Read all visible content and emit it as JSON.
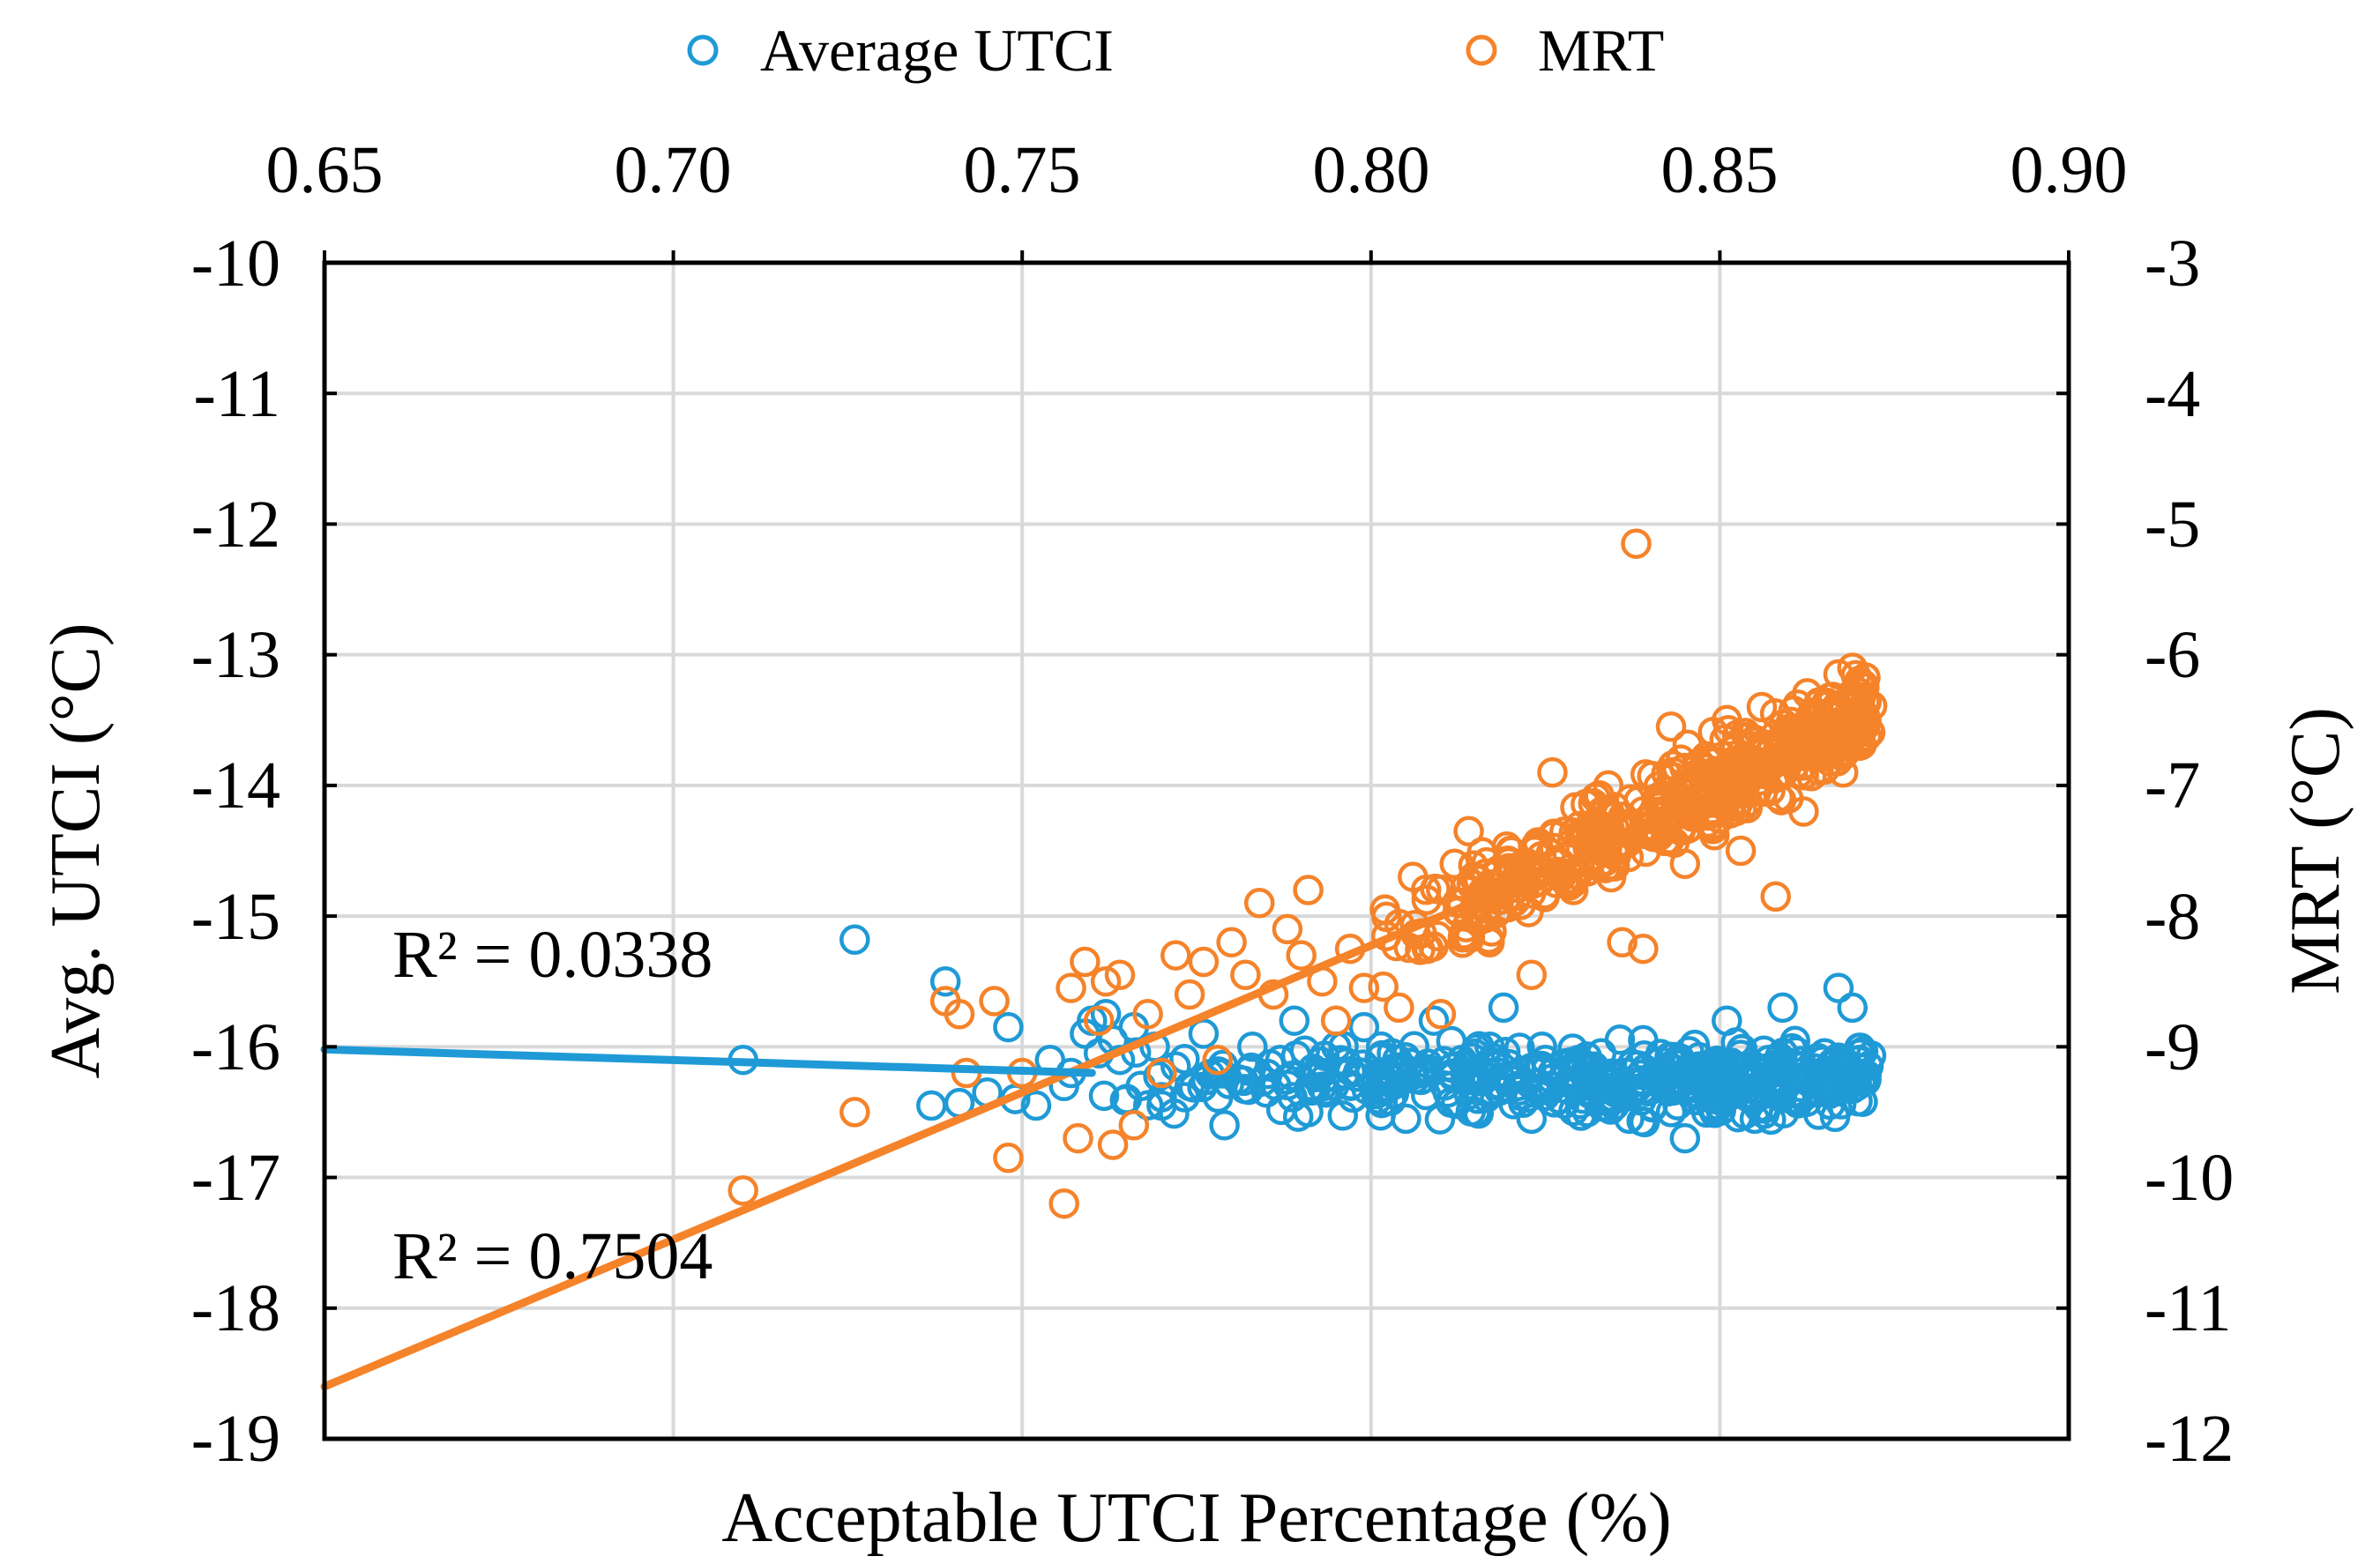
{
  "colors": {
    "utci": "#1f9ad6",
    "mrt": "#f5832a",
    "grid": "#d9d9d9",
    "axis": "#000000"
  },
  "chart_data": {
    "type": "scatter",
    "title": "",
    "xlabel": "Acceptable UTCI Percentage (%)",
    "ylabel_left": "Avg. UTCI (°C)",
    "ylabel_right": "MRT (°C)",
    "xlim": [
      0.65,
      0.9
    ],
    "x_ticks": [
      "0.65",
      "0.70",
      "0.75",
      "0.80",
      "0.85",
      "0.90"
    ],
    "ylim_left": [
      -19,
      -10
    ],
    "y_ticks_left": [
      "-10",
      "-11",
      "-12",
      "-13",
      "-14",
      "-15",
      "-16",
      "-17",
      "-18",
      "-19"
    ],
    "ylim_right": [
      -12,
      -3
    ],
    "y_ticks_right": [
      "-3",
      "-4",
      "-5",
      "-6",
      "-7",
      "-8",
      "-9",
      "-10",
      "-11",
      "-12"
    ],
    "grid": true,
    "legend_position": "top-center",
    "series": [
      {
        "name": "Average UTCI",
        "axis": "left",
        "marker": "open-circle",
        "color": "#1f9ad6",
        "r_squared_label": "R² = 0.0338",
        "trendline": {
          "x": [
            0.65,
            0.76
          ],
          "y": [
            -16.02,
            -16.2
          ]
        },
        "points": [
          [
            0.71,
            -16.1
          ],
          [
            0.726,
            -15.18
          ],
          [
            0.739,
            -15.5
          ],
          [
            0.737,
            -16.45
          ],
          [
            0.741,
            -16.43
          ],
          [
            0.745,
            -16.35
          ],
          [
            0.748,
            -15.85
          ],
          [
            0.749,
            -16.4
          ],
          [
            0.752,
            -16.45
          ],
          [
            0.754,
            -16.1
          ],
          [
            0.756,
            -16.3
          ],
          [
            0.757,
            -16.2
          ],
          [
            0.759,
            -15.9
          ],
          [
            0.76,
            -15.8
          ],
          [
            0.761,
            -16.05
          ],
          [
            0.762,
            -15.75
          ],
          [
            0.763,
            -15.95
          ],
          [
            0.764,
            -16.1
          ],
          [
            0.765,
            -16.4
          ],
          [
            0.766,
            -15.85
          ],
          [
            0.767,
            -16.3
          ],
          [
            0.769,
            -16.0
          ],
          [
            0.77,
            -16.45
          ],
          [
            0.772,
            -16.15
          ],
          [
            0.774,
            -16.3
          ],
          [
            0.776,
            -15.9
          ],
          [
            0.778,
            -16.2
          ],
          [
            0.779,
            -16.6
          ],
          [
            0.781,
            -16.25
          ],
          [
            0.783,
            -16.0
          ],
          [
            0.785,
            -16.35
          ],
          [
            0.787,
            -16.1
          ],
          [
            0.789,
            -15.8
          ],
          [
            0.791,
            -16.5
          ],
          [
            0.793,
            -16.2
          ],
          [
            0.795,
            -16.0
          ],
          [
            0.797,
            -16.3
          ],
          [
            0.799,
            -15.85
          ],
          [
            0.801,
            -16.4
          ],
          [
            0.803,
            -16.05
          ],
          [
            0.805,
            -16.55
          ],
          [
            0.807,
            -16.2
          ],
          [
            0.809,
            -15.8
          ],
          [
            0.811,
            -16.35
          ],
          [
            0.813,
            -16.1
          ],
          [
            0.815,
            -16.5
          ],
          [
            0.817,
            -16.0
          ],
          [
            0.819,
            -15.7
          ],
          [
            0.821,
            -16.3
          ],
          [
            0.823,
            -16.55
          ],
          [
            0.825,
            -16.1
          ],
          [
            0.827,
            -16.4
          ],
          [
            0.829,
            -16.2
          ],
          [
            0.831,
            -16.5
          ],
          [
            0.833,
            -16.05
          ],
          [
            0.835,
            -16.35
          ],
          [
            0.837,
            -16.55
          ],
          [
            0.839,
            -15.95
          ],
          [
            0.841,
            -16.25
          ],
          [
            0.843,
            -16.5
          ],
          [
            0.845,
            -16.7
          ],
          [
            0.847,
            -16.15
          ],
          [
            0.849,
            -16.4
          ],
          [
            0.851,
            -15.8
          ],
          [
            0.853,
            -16.3
          ],
          [
            0.855,
            -16.55
          ],
          [
            0.857,
            -16.1
          ],
          [
            0.859,
            -15.7
          ],
          [
            0.861,
            -16.35
          ],
          [
            0.863,
            -16.2
          ],
          [
            0.865,
            -16.05
          ],
          [
            0.867,
            -15.55
          ],
          [
            0.868,
            -16.15
          ],
          [
            0.869,
            -15.7
          ],
          [
            0.87,
            -16.1
          ],
          [
            0.871,
            -16.25
          ]
        ],
        "cloud": {
          "x_range": [
            0.758,
            0.872
          ],
          "center": -16.25,
          "spread": 0.38,
          "count": 420
        }
      },
      {
        "name": "MRT",
        "axis": "right",
        "marker": "open-circle",
        "color": "#f5832a",
        "r_squared_label": "R² = 0.7504",
        "trendline": {
          "x": [
            0.65,
            0.87
          ],
          "y": [
            -11.6,
            -6.65
          ]
        },
        "points": [
          [
            0.71,
            -10.1
          ],
          [
            0.726,
            -9.5
          ],
          [
            0.739,
            -8.65
          ],
          [
            0.741,
            -8.75
          ],
          [
            0.742,
            -9.2
          ],
          [
            0.746,
            -8.65
          ],
          [
            0.748,
            -9.85
          ],
          [
            0.75,
            -9.2
          ],
          [
            0.756,
            -10.2
          ],
          [
            0.757,
            -8.55
          ],
          [
            0.758,
            -9.7
          ],
          [
            0.759,
            -8.35
          ],
          [
            0.761,
            -8.8
          ],
          [
            0.762,
            -8.5
          ],
          [
            0.763,
            -9.75
          ],
          [
            0.764,
            -8.45
          ],
          [
            0.766,
            -9.6
          ],
          [
            0.768,
            -8.75
          ],
          [
            0.77,
            -9.2
          ],
          [
            0.772,
            -8.3
          ],
          [
            0.774,
            -8.6
          ],
          [
            0.776,
            -8.35
          ],
          [
            0.778,
            -9.1
          ],
          [
            0.78,
            -8.2
          ],
          [
            0.782,
            -8.45
          ],
          [
            0.784,
            -7.9
          ],
          [
            0.786,
            -8.6
          ],
          [
            0.788,
            -8.1
          ],
          [
            0.79,
            -8.3
          ],
          [
            0.791,
            -7.8
          ],
          [
            0.793,
            -8.5
          ],
          [
            0.795,
            -8.8
          ],
          [
            0.797,
            -8.25
          ],
          [
            0.799,
            -8.55
          ],
          [
            0.802,
            -7.95
          ],
          [
            0.804,
            -8.7
          ],
          [
            0.806,
            -7.7
          ],
          [
            0.808,
            -8.25
          ],
          [
            0.81,
            -8.75
          ],
          [
            0.812,
            -7.6
          ],
          [
            0.814,
            -7.35
          ],
          [
            0.817,
            -8.2
          ],
          [
            0.82,
            -7.5
          ],
          [
            0.823,
            -8.45
          ],
          [
            0.826,
            -6.9
          ],
          [
            0.829,
            -7.8
          ],
          [
            0.832,
            -7.45
          ],
          [
            0.834,
            -7.0
          ],
          [
            0.836,
            -8.2
          ],
          [
            0.838,
            -5.15
          ],
          [
            0.839,
            -8.25
          ],
          [
            0.841,
            -7.1
          ],
          [
            0.843,
            -6.55
          ],
          [
            0.845,
            -7.6
          ],
          [
            0.847,
            -6.9
          ],
          [
            0.849,
            -7.3
          ],
          [
            0.851,
            -6.5
          ],
          [
            0.853,
            -7.5
          ],
          [
            0.855,
            -6.65
          ],
          [
            0.856,
            -6.4
          ],
          [
            0.858,
            -7.85
          ],
          [
            0.86,
            -6.7
          ],
          [
            0.862,
            -7.2
          ],
          [
            0.864,
            -6.6
          ],
          [
            0.866,
            -6.75
          ],
          [
            0.867,
            -6.15
          ],
          [
            0.868,
            -6.55
          ],
          [
            0.869,
            -6.1
          ],
          [
            0.87,
            -6.2
          ],
          [
            0.871,
            -6.5
          ]
        ],
        "cloud": {
          "x_range": [
            0.8,
            0.872
          ],
          "intercept_at_0_80": -8.3,
          "slope_per_0_01": 0.26,
          "spread": 0.5,
          "count": 460
        }
      }
    ]
  }
}
